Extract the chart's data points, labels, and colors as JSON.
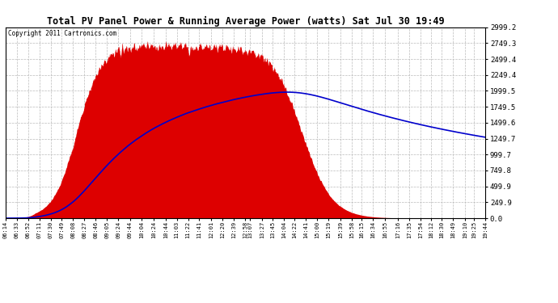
{
  "title": "Total PV Panel Power & Running Average Power (watts) Sat Jul 30 19:49",
  "copyright": "Copyright 2011 Cartronics.com",
  "background_color": "#ffffff",
  "plot_bg_color": "#ffffff",
  "grid_color": "#bbbbbb",
  "fill_color": "#dd0000",
  "line_color": "#0000cc",
  "yticks": [
    0.0,
    249.9,
    499.9,
    749.8,
    999.7,
    1249.7,
    1499.6,
    1749.5,
    1999.5,
    2249.4,
    2499.4,
    2749.3,
    2999.2
  ],
  "ymax": 2999.2,
  "ymin": 0.0,
  "time_labels": [
    "06:14",
    "06:33",
    "06:52",
    "07:11",
    "07:30",
    "07:49",
    "08:08",
    "08:27",
    "08:46",
    "09:05",
    "09:24",
    "09:44",
    "10:04",
    "10:24",
    "10:44",
    "11:03",
    "11:22",
    "11:41",
    "12:01",
    "12:20",
    "12:39",
    "12:58",
    "13:07",
    "13:27",
    "13:45",
    "14:04",
    "14:22",
    "14:41",
    "15:00",
    "15:19",
    "15:39",
    "15:58",
    "16:15",
    "16:34",
    "16:55",
    "17:16",
    "17:35",
    "17:54",
    "18:12",
    "18:30",
    "18:49",
    "19:10",
    "19:25",
    "19:44"
  ]
}
